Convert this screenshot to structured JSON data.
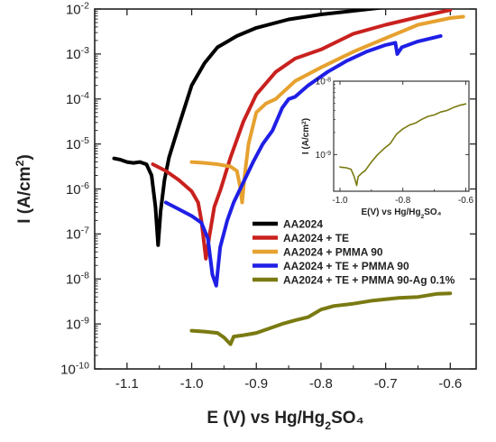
{
  "chart_data": [
    {
      "type": "line",
      "title": "",
      "xlabel": "E (V) vs Hg/Hg₂SO₄",
      "ylabel": "I (A/cm²)",
      "xlim": [
        -1.15,
        -0.56
      ],
      "ylim_log10": [
        -10,
        -2
      ],
      "y_scale": "log",
      "x_ticks": [
        "-1.1",
        "-1.0",
        "-0.9",
        "-0.8",
        "-0.7",
        "-0.6"
      ],
      "x_tick_values": [
        -1.1,
        -1.0,
        -0.9,
        -0.8,
        -0.7,
        -0.6
      ],
      "y_tick_exponents": [
        "-10",
        "-9",
        "-8",
        "-7",
        "-6",
        "-5",
        "-4",
        "-3",
        "-2"
      ],
      "y_tick_base": "10",
      "legend_position": "center-right",
      "grid": false,
      "series": [
        {
          "name": "AA2024",
          "color": "#000000",
          "points": [
            [
              -1.12,
              -5.32
            ],
            [
              -1.11,
              -5.35
            ],
            [
              -1.1,
              -5.4
            ],
            [
              -1.09,
              -5.42
            ],
            [
              -1.08,
              -5.4
            ],
            [
              -1.07,
              -5.45
            ],
            [
              -1.062,
              -5.7
            ],
            [
              -1.056,
              -6.4
            ],
            [
              -1.052,
              -7.25
            ],
            [
              -1.048,
              -6.5
            ],
            [
              -1.042,
              -5.8
            ],
            [
              -1.035,
              -5.3
            ],
            [
              -1.02,
              -4.6
            ],
            [
              -1.0,
              -3.7
            ],
            [
              -0.98,
              -3.2
            ],
            [
              -0.96,
              -2.85
            ],
            [
              -0.93,
              -2.6
            ],
            [
              -0.9,
              -2.42
            ],
            [
              -0.85,
              -2.23
            ],
            [
              -0.8,
              -2.12
            ],
            [
              -0.75,
              -2.04
            ],
            [
              -0.7,
              -1.96
            ]
          ]
        },
        {
          "name": "AA2024 + TE",
          "color": "#c9211e",
          "points": [
            [
              -1.06,
              -5.45
            ],
            [
              -1.04,
              -5.6
            ],
            [
              -1.02,
              -5.8
            ],
            [
              -1.0,
              -6.05
            ],
            [
              -0.99,
              -6.3
            ],
            [
              -0.985,
              -6.7
            ],
            [
              -0.978,
              -7.55
            ],
            [
              -0.972,
              -7.0
            ],
            [
              -0.965,
              -6.4
            ],
            [
              -0.955,
              -6.0
            ],
            [
              -0.94,
              -5.3
            ],
            [
              -0.92,
              -4.5
            ],
            [
              -0.9,
              -3.9
            ],
            [
              -0.87,
              -3.4
            ],
            [
              -0.84,
              -3.1
            ],
            [
              -0.8,
              -2.9
            ],
            [
              -0.75,
              -2.55
            ],
            [
              -0.7,
              -2.35
            ],
            [
              -0.65,
              -2.18
            ],
            [
              -0.6,
              -2.02
            ]
          ]
        },
        {
          "name": "AA2024 + PMMA 90",
          "color": "#e6a12f",
          "points": [
            [
              -1.0,
              -5.4
            ],
            [
              -0.98,
              -5.42
            ],
            [
              -0.96,
              -5.45
            ],
            [
              -0.94,
              -5.5
            ],
            [
              -0.93,
              -5.6
            ],
            [
              -0.925,
              -5.95
            ],
            [
              -0.922,
              -6.3
            ],
            [
              -0.918,
              -5.7
            ],
            [
              -0.912,
              -5.0
            ],
            [
              -0.9,
              -4.3
            ],
            [
              -0.885,
              -4.1
            ],
            [
              -0.87,
              -4.0
            ],
            [
              -0.84,
              -3.6
            ],
            [
              -0.8,
              -3.3
            ],
            [
              -0.75,
              -2.95
            ],
            [
              -0.7,
              -2.65
            ],
            [
              -0.65,
              -2.35
            ],
            [
              -0.6,
              -2.2
            ],
            [
              -0.58,
              -2.17
            ]
          ]
        },
        {
          "name": "AA2024 + TE + PMMA 90",
          "color": "#1f1fe6",
          "points": [
            [
              -1.04,
              -6.3
            ],
            [
              -1.02,
              -6.45
            ],
            [
              -1.0,
              -6.6
            ],
            [
              -0.985,
              -6.75
            ],
            [
              -0.975,
              -7.1
            ],
            [
              -0.968,
              -7.9
            ],
            [
              -0.962,
              -8.15
            ],
            [
              -0.956,
              -7.3
            ],
            [
              -0.945,
              -6.7
            ],
            [
              -0.935,
              -6.3
            ],
            [
              -0.92,
              -5.85
            ],
            [
              -0.905,
              -5.4
            ],
            [
              -0.89,
              -5.0
            ],
            [
              -0.875,
              -4.7
            ],
            [
              -0.86,
              -4.2
            ],
            [
              -0.85,
              -4.0
            ],
            [
              -0.84,
              -3.95
            ],
            [
              -0.82,
              -3.7
            ],
            [
              -0.79,
              -3.4
            ],
            [
              -0.76,
              -3.15
            ],
            [
              -0.73,
              -2.95
            ],
            [
              -0.7,
              -2.8
            ],
            [
              -0.685,
              -2.75
            ],
            [
              -0.682,
              -3.0
            ],
            [
              -0.675,
              -2.85
            ],
            [
              -0.65,
              -2.72
            ],
            [
              -0.615,
              -2.6
            ]
          ]
        },
        {
          "name": "AA2024 + TE + PMMA 90-Ag 0.1%",
          "color": "#7a7a12",
          "points": [
            [
              -1.0,
              -9.15
            ],
            [
              -0.98,
              -9.17
            ],
            [
              -0.96,
              -9.2
            ],
            [
              -0.95,
              -9.3
            ],
            [
              -0.94,
              -9.45
            ],
            [
              -0.935,
              -9.28
            ],
            [
              -0.92,
              -9.25
            ],
            [
              -0.9,
              -9.2
            ],
            [
              -0.88,
              -9.1
            ],
            [
              -0.86,
              -9.0
            ],
            [
              -0.84,
              -8.92
            ],
            [
              -0.82,
              -8.85
            ],
            [
              -0.8,
              -8.68
            ],
            [
              -0.78,
              -8.6
            ],
            [
              -0.75,
              -8.55
            ],
            [
              -0.72,
              -8.48
            ],
            [
              -0.7,
              -8.45
            ],
            [
              -0.68,
              -8.42
            ],
            [
              -0.65,
              -8.4
            ],
            [
              -0.62,
              -8.33
            ],
            [
              -0.6,
              -8.32
            ]
          ]
        }
      ]
    },
    {
      "type": "line",
      "title": "",
      "xlabel": "E(V) vs Hg/Hg₂SO₄",
      "ylabel": "I (A/cm²)",
      "xlim": [
        -1.02,
        -0.59
      ],
      "ylim_log10": [
        -9.5,
        -8.0
      ],
      "y_scale": "log",
      "x_ticks": [
        "-1.0",
        "-0.8",
        "-0.6"
      ],
      "x_tick_values": [
        -1.0,
        -0.8,
        -0.6
      ],
      "y_tick_exponents": [
        "-9",
        "-8"
      ],
      "y_tick_base": "10",
      "grid": false,
      "series": [
        {
          "name": "AA2024 + TE + PMMA 90-Ag 0.1%",
          "color": "#7a7a12",
          "points": [
            [
              -1.0,
              -9.17
            ],
            [
              -0.98,
              -9.18
            ],
            [
              -0.965,
              -9.2
            ],
            [
              -0.955,
              -9.3
            ],
            [
              -0.947,
              -9.42
            ],
            [
              -0.942,
              -9.3
            ],
            [
              -0.93,
              -9.25
            ],
            [
              -0.92,
              -9.22
            ],
            [
              -0.9,
              -9.1
            ],
            [
              -0.88,
              -9.0
            ],
            [
              -0.86,
              -8.92
            ],
            [
              -0.84,
              -8.85
            ],
            [
              -0.82,
              -8.72
            ],
            [
              -0.8,
              -8.65
            ],
            [
              -0.78,
              -8.6
            ],
            [
              -0.76,
              -8.57
            ],
            [
              -0.74,
              -8.52
            ],
            [
              -0.72,
              -8.48
            ],
            [
              -0.7,
              -8.46
            ],
            [
              -0.68,
              -8.42
            ],
            [
              -0.66,
              -8.4
            ],
            [
              -0.64,
              -8.36
            ],
            [
              -0.62,
              -8.33
            ],
            [
              -0.6,
              -8.31
            ]
          ]
        }
      ]
    }
  ]
}
